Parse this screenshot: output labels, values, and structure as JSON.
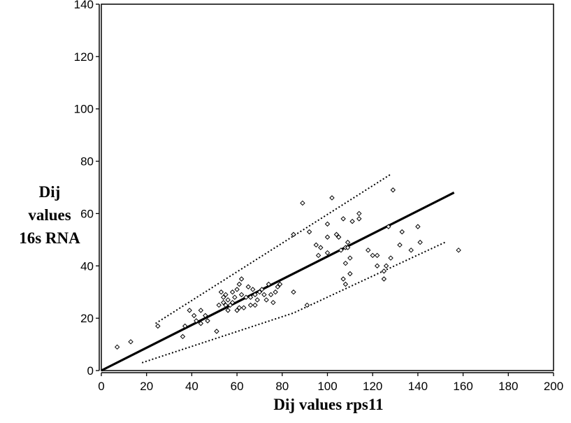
{
  "chart_data": {
    "type": "scatter",
    "title": "",
    "xlabel": "Dij values rps11",
    "ylabel_lines": [
      "Dij",
      "values",
      "16s RNA"
    ],
    "xlim": [
      0,
      200
    ],
    "ylim": [
      0,
      140
    ],
    "xticks": [
      0,
      20,
      40,
      60,
      80,
      100,
      120,
      140,
      160,
      180,
      200
    ],
    "yticks": [
      0,
      20,
      40,
      60,
      80,
      100,
      120,
      140
    ],
    "grid": false,
    "legend": "none",
    "points": [
      [
        7,
        9
      ],
      [
        13,
        11
      ],
      [
        25,
        17
      ],
      [
        36,
        13
      ],
      [
        37,
        17
      ],
      [
        39,
        23
      ],
      [
        41,
        21
      ],
      [
        42,
        19
      ],
      [
        44,
        18
      ],
      [
        44,
        23
      ],
      [
        46,
        21
      ],
      [
        47,
        19
      ],
      [
        51,
        15
      ],
      [
        52,
        25
      ],
      [
        53,
        30
      ],
      [
        54,
        26
      ],
      [
        54,
        28
      ],
      [
        55,
        25
      ],
      [
        55,
        29
      ],
      [
        56,
        23
      ],
      [
        56,
        27
      ],
      [
        57,
        25
      ],
      [
        58,
        30
      ],
      [
        58,
        26
      ],
      [
        59,
        28
      ],
      [
        60,
        31
      ],
      [
        60,
        23
      ],
      [
        61,
        24
      ],
      [
        61,
        33
      ],
      [
        62,
        35
      ],
      [
        62,
        29
      ],
      [
        63,
        24
      ],
      [
        64,
        28
      ],
      [
        65,
        32
      ],
      [
        66,
        28
      ],
      [
        66,
        25
      ],
      [
        67,
        31
      ],
      [
        68,
        29
      ],
      [
        68,
        25
      ],
      [
        69,
        27
      ],
      [
        70,
        30
      ],
      [
        71,
        31
      ],
      [
        72,
        29
      ],
      [
        73,
        27
      ],
      [
        74,
        33
      ],
      [
        75,
        29
      ],
      [
        76,
        26
      ],
      [
        77,
        30
      ],
      [
        78,
        32
      ],
      [
        79,
        33
      ],
      [
        85,
        30
      ],
      [
        85,
        52
      ],
      [
        89,
        64
      ],
      [
        91,
        25
      ],
      [
        92,
        53
      ],
      [
        95,
        48
      ],
      [
        96,
        44
      ],
      [
        97,
        47
      ],
      [
        100,
        45
      ],
      [
        100,
        51
      ],
      [
        100,
        56
      ],
      [
        102,
        66
      ],
      [
        104,
        52
      ],
      [
        105,
        51
      ],
      [
        106,
        46
      ],
      [
        107,
        35
      ],
      [
        107,
        58
      ],
      [
        108,
        41
      ],
      [
        108,
        33
      ],
      [
        108,
        47
      ],
      [
        109,
        49
      ],
      [
        109,
        47
      ],
      [
        110,
        43
      ],
      [
        110,
        37
      ],
      [
        111,
        57
      ],
      [
        114,
        60
      ],
      [
        114,
        58
      ],
      [
        118,
        46
      ],
      [
        120,
        44
      ],
      [
        122,
        40
      ],
      [
        122,
        44
      ],
      [
        125,
        38
      ],
      [
        125,
        35
      ],
      [
        126,
        40
      ],
      [
        127,
        55
      ],
      [
        128,
        43
      ],
      [
        129,
        69
      ],
      [
        132,
        48
      ],
      [
        133,
        53
      ],
      [
        137,
        46
      ],
      [
        140,
        55
      ],
      [
        141,
        49
      ],
      [
        158,
        46
      ]
    ],
    "regression_line": {
      "x": [
        0,
        156
      ],
      "y": [
        0,
        68
      ]
    },
    "upper_bound": {
      "x": [
        24,
        128
      ],
      "y": [
        18,
        75
      ]
    },
    "lower_bound": {
      "x": [
        18,
        85,
        152
      ],
      "y": [
        3,
        22,
        49
      ]
    }
  }
}
